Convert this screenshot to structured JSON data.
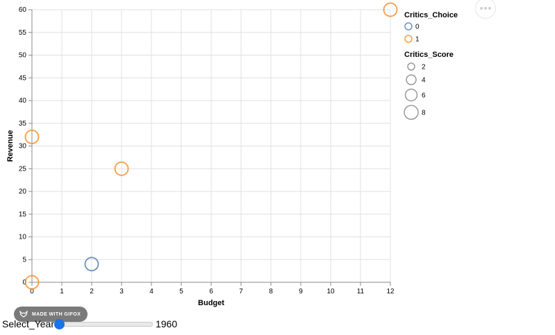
{
  "chart_data": {
    "type": "scatter",
    "xlabel": "Budget",
    "ylabel": "Revenue",
    "xlim": [
      0,
      12
    ],
    "ylim": [
      0,
      60
    ],
    "x_ticks": [
      0,
      1,
      2,
      3,
      4,
      5,
      6,
      7,
      8,
      9,
      10,
      11,
      12
    ],
    "y_ticks": [
      0,
      5,
      10,
      15,
      20,
      25,
      30,
      35,
      40,
      45,
      50,
      55,
      60
    ],
    "grid": true,
    "points": [
      {
        "x": 0,
        "y": 0,
        "critics_choice": 1
      },
      {
        "x": 0,
        "y": 32,
        "critics_choice": 1
      },
      {
        "x": 2,
        "y": 4,
        "critics_choice": 0
      },
      {
        "x": 3,
        "y": 25,
        "critics_choice": 1
      },
      {
        "x": 12,
        "y": 60,
        "critics_choice": 1
      }
    ],
    "legend_color": {
      "title": "Critics_Choice",
      "items": [
        {
          "label": "0",
          "color": "#4c78a8"
        },
        {
          "label": "1",
          "color": "#f58518"
        }
      ]
    },
    "legend_size": {
      "title": "Critics_Score",
      "items": [
        {
          "label": "2",
          "value": 2
        },
        {
          "label": "4",
          "value": 4
        },
        {
          "label": "6",
          "value": 6
        },
        {
          "label": "8",
          "value": 8
        }
      ]
    },
    "legend_position": "right"
  },
  "watermark": {
    "text": "MADE WITH GIFOX"
  },
  "slider": {
    "label": "Select_Year",
    "value": "1960",
    "fraction": 0
  }
}
